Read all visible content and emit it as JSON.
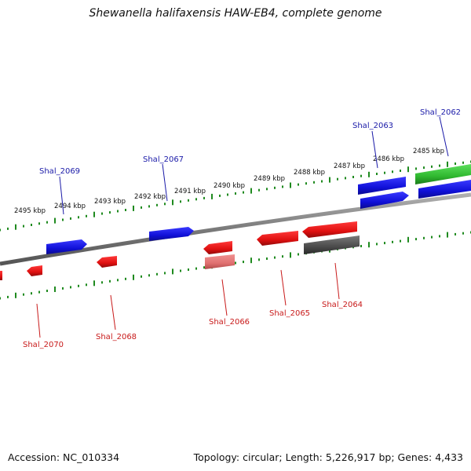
{
  "title": "Shewanella halifaxensis HAW-EB4, complete genome",
  "footer": {
    "accession": "Accession: NC_010334",
    "summary": "Topology: circular; Length: 5,226,917 bp; Genes: 4,433"
  },
  "colors": {
    "forward_gene": "#1414e0",
    "reverse_gene": "#e81414",
    "rna_gene": "#33c433",
    "pseudo_gene": "#555555",
    "light_reverse": "#e87a7a",
    "tick": "#1f8a1f",
    "backbone": "#888888"
  },
  "scale_labels_upper": [
    {
      "kbp": 2485,
      "text": "2485 kbp"
    },
    {
      "kbp": 2486,
      "text": "2486 kbp"
    },
    {
      "kbp": 2487,
      "text": "2487 kbp"
    },
    {
      "kbp": 2488,
      "text": "2488 kbp"
    },
    {
      "kbp": 2489,
      "text": "2489 kbp"
    },
    {
      "kbp": 2490,
      "text": "2490 kbp"
    },
    {
      "kbp": 2491,
      "text": "2491 kbp"
    },
    {
      "kbp": 2492,
      "text": "2492 kbp"
    },
    {
      "kbp": 2493,
      "text": "2493 kbp"
    },
    {
      "kbp": 2494,
      "text": "2494 kbp"
    },
    {
      "kbp": 2495,
      "text": "2495 kbp"
    }
  ],
  "gene_labels": [
    {
      "id": "Shal_2062",
      "strand": "forward"
    },
    {
      "id": "Shal_2063",
      "strand": "forward"
    },
    {
      "id": "Shal_2067",
      "strand": "forward"
    },
    {
      "id": "Shal_2069",
      "strand": "forward"
    },
    {
      "id": "Shal_2064",
      "strand": "reverse"
    },
    {
      "id": "Shal_2065",
      "strand": "reverse"
    },
    {
      "id": "Shal_2066",
      "strand": "reverse"
    },
    {
      "id": "Shal_2068",
      "strand": "reverse"
    },
    {
      "id": "Shal_2070",
      "strand": "reverse"
    }
  ]
}
